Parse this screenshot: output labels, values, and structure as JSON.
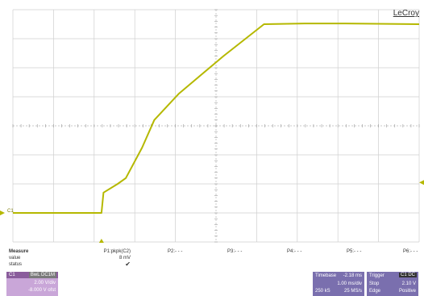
{
  "brand": "LeCroy",
  "chart_data": {
    "type": "line",
    "title": "",
    "xlabel": "",
    "ylabel": "",
    "grid": true,
    "grid_divisions": {
      "x": 10,
      "y": 8
    },
    "xlim": [
      -2.18,
      7.82
    ],
    "ylim": [
      -2.0,
      14.0
    ],
    "x_unit": "ms",
    "y_unit": "V",
    "series": [
      {
        "color": "#b5b800",
        "x": [
          -2.18,
          0.0,
          0.05,
          0.4,
          0.6,
          1.0,
          1.3,
          1.9,
          3.0,
          4.0,
          5.0,
          6.0,
          7.82
        ],
        "y": [
          0.0,
          0.0,
          1.4,
          2.0,
          2.4,
          4.5,
          6.4,
          8.2,
          10.8,
          13.0,
          13.05,
          13.05,
          13.0
        ]
      }
    ],
    "channel_marker": "C1"
  },
  "measure": {
    "title": "Measure",
    "row_value": "value",
    "row_status": "status",
    "p1_label": "P1:pkpk(C2)",
    "p1_value": "8 mV",
    "p1_status": "✔",
    "p2": "P2:- - -",
    "p3": "P3:- - -",
    "p4": "P4:- - -",
    "p5": "P5:- - -",
    "p6": "P6:- - -"
  },
  "channel": {
    "name": "C1",
    "coupling": "BwL DC1M",
    "scale": "2.00 V/div",
    "offset": "-8.000 V ofst"
  },
  "timebase": {
    "label": "Timebase",
    "delay": "-2.18 ms",
    "per_div": "1.00 ms/div",
    "samples": "250 kS",
    "rate": "25 MS/s"
  },
  "trigger": {
    "label": "Trigger",
    "coupling": "C1 DC",
    "mode": "Stop",
    "level": "2.10 V",
    "type": "Edge",
    "slope": "Positive"
  },
  "colors": {
    "trace": "#b5b800",
    "grid": "#cfcfcf",
    "channel_panel": "#c9a6d8",
    "timebase_panel": "#7a6fae"
  }
}
